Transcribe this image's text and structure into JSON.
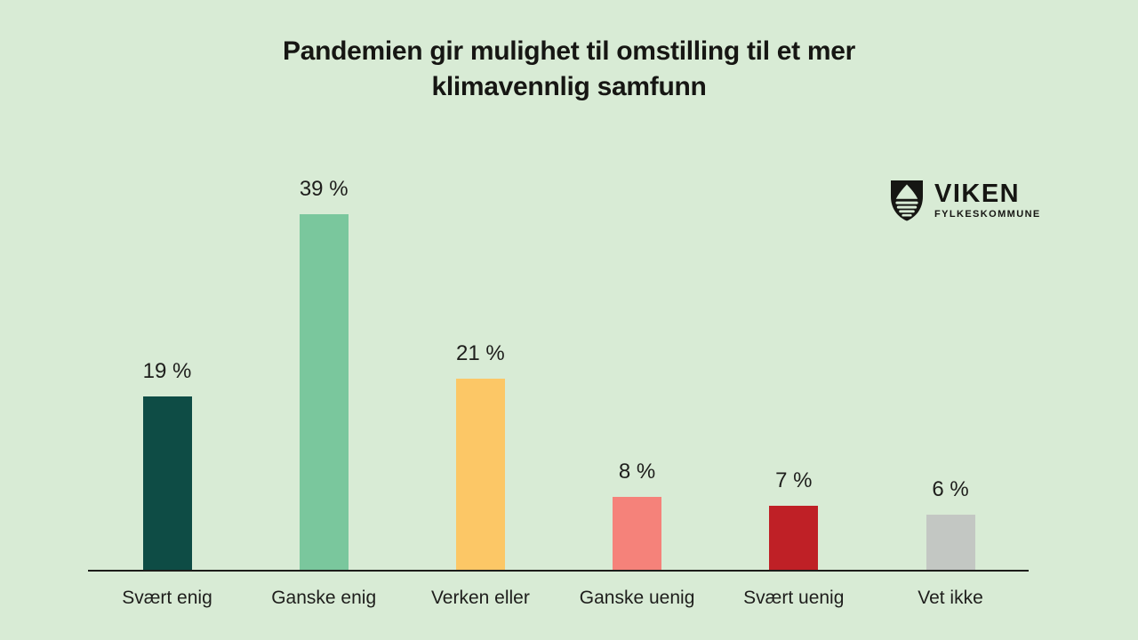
{
  "title_lines": [
    "Pandemien gir mulighet til omstilling til et mer",
    "klimavennlig samfunn"
  ],
  "logo": {
    "name": "VIKEN",
    "subtitle": "FYLKESKOMMUNE"
  },
  "colors": {
    "background": "#d8ebd5",
    "text": "#1e1e1c",
    "axis": "#1c1c1a"
  },
  "chart_data": {
    "type": "bar",
    "title": "Pandemien gir mulighet til omstilling til et mer klimavennlig samfunn",
    "categories": [
      "Svært enig",
      "Ganske enig",
      "Verken eller",
      "Ganske uenig",
      "Svært uenig",
      "Vet ikke"
    ],
    "values": [
      19,
      39,
      21,
      8,
      7,
      6
    ],
    "value_labels": [
      "19 %",
      "39 %",
      "21 %",
      "8 %",
      "7 %",
      "6 %"
    ],
    "bar_colors": [
      "#0e4c45",
      "#7ac79d",
      "#fcc766",
      "#f5827a",
      "#bf2026",
      "#c3c7c3"
    ],
    "unit": "%",
    "xlabel": "",
    "ylabel": "",
    "ylim": [
      0,
      40
    ],
    "grid": false,
    "legend": null,
    "value_labels_position": "above-bars",
    "axis_shown": "x-only"
  }
}
